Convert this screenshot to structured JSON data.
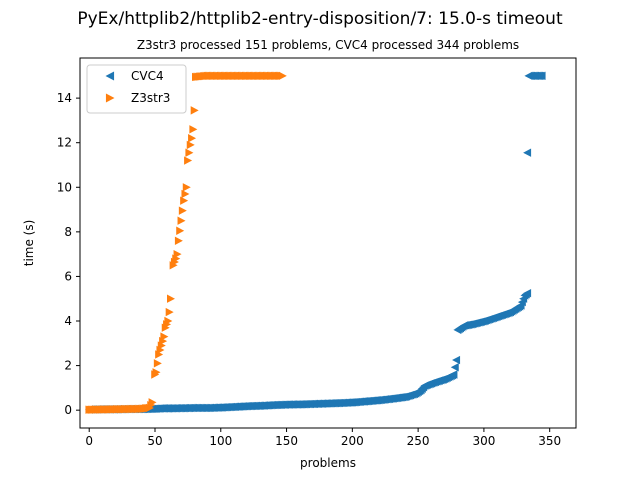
{
  "chart_data": {
    "type": "scatter",
    "title": "PyEx/httplib2/httplib2-entry-disposition/7: 15.0-s timeout",
    "subtitle": "Z3str3 processed 151 problems, CVC4 processed 344 problems",
    "xlabel": "problems",
    "ylabel": "time (s)",
    "xlim": [
      -7,
      370
    ],
    "ylim": [
      -0.8,
      15.8
    ],
    "xticks": [
      0,
      50,
      100,
      150,
      200,
      250,
      300,
      350
    ],
    "yticks": [
      0,
      2,
      4,
      6,
      8,
      10,
      12,
      14
    ],
    "legend_position": "top-left",
    "grid": false,
    "series": [
      {
        "name": "CVC4",
        "color": "#1f77b4",
        "marker": "triangle-left",
        "points": [
          [
            0,
            0.03
          ],
          [
            10,
            0.04
          ],
          [
            20,
            0.04
          ],
          [
            30,
            0.05
          ],
          [
            40,
            0.05
          ],
          [
            48,
            0.06
          ],
          [
            55,
            0.08
          ],
          [
            60,
            0.08
          ],
          [
            70,
            0.09
          ],
          [
            80,
            0.1
          ],
          [
            90,
            0.1
          ],
          [
            100,
            0.12
          ],
          [
            110,
            0.15
          ],
          [
            120,
            0.18
          ],
          [
            130,
            0.2
          ],
          [
            140,
            0.23
          ],
          [
            150,
            0.25
          ],
          [
            160,
            0.26
          ],
          [
            170,
            0.28
          ],
          [
            180,
            0.3
          ],
          [
            190,
            0.32
          ],
          [
            200,
            0.35
          ],
          [
            210,
            0.4
          ],
          [
            220,
            0.45
          ],
          [
            230,
            0.52
          ],
          [
            240,
            0.6
          ],
          [
            248,
            0.75
          ],
          [
            252,
            0.9
          ],
          [
            255,
            1.1
          ],
          [
            262,
            1.25
          ],
          [
            270,
            1.4
          ],
          [
            277,
            1.6
          ],
          [
            279,
            2.25
          ],
          [
            280,
            3.6
          ],
          [
            285,
            3.8
          ],
          [
            290,
            3.85
          ],
          [
            300,
            4.0
          ],
          [
            310,
            4.2
          ],
          [
            320,
            4.4
          ],
          [
            328,
            4.7
          ],
          [
            331,
            5.15
          ],
          [
            333,
            5.25
          ],
          [
            333,
            11.55
          ],
          [
            334,
            15.0
          ],
          [
            338,
            15.0
          ],
          [
            342,
            15.0
          ],
          [
            344,
            15.0
          ]
        ]
      },
      {
        "name": "Z3str3",
        "color": "#ff7f0e",
        "marker": "triangle-right",
        "points": [
          [
            0,
            0.02
          ],
          [
            10,
            0.03
          ],
          [
            20,
            0.04
          ],
          [
            30,
            0.05
          ],
          [
            40,
            0.06
          ],
          [
            46,
            0.1
          ],
          [
            48,
            0.35
          ],
          [
            50,
            1.6
          ],
          [
            51,
            1.7
          ],
          [
            53,
            2.5
          ],
          [
            55,
            2.9
          ],
          [
            57,
            3.3
          ],
          [
            58,
            3.7
          ],
          [
            60,
            4.0
          ],
          [
            61,
            4.4
          ],
          [
            62,
            5.0
          ],
          [
            64,
            6.5
          ],
          [
            66,
            6.8
          ],
          [
            67,
            7.0
          ],
          [
            68,
            7.6
          ],
          [
            70,
            8.5
          ],
          [
            72,
            9.4
          ],
          [
            74,
            10.0
          ],
          [
            75,
            11.2
          ],
          [
            77,
            11.9
          ],
          [
            78,
            12.2
          ],
          [
            79,
            12.6
          ],
          [
            80,
            13.45
          ],
          [
            81,
            14.95
          ],
          [
            90,
            15.0
          ],
          [
            100,
            15.0
          ],
          [
            110,
            15.0
          ],
          [
            120,
            15.0
          ],
          [
            130,
            15.0
          ],
          [
            140,
            15.0
          ],
          [
            147,
            15.0
          ]
        ]
      }
    ]
  }
}
